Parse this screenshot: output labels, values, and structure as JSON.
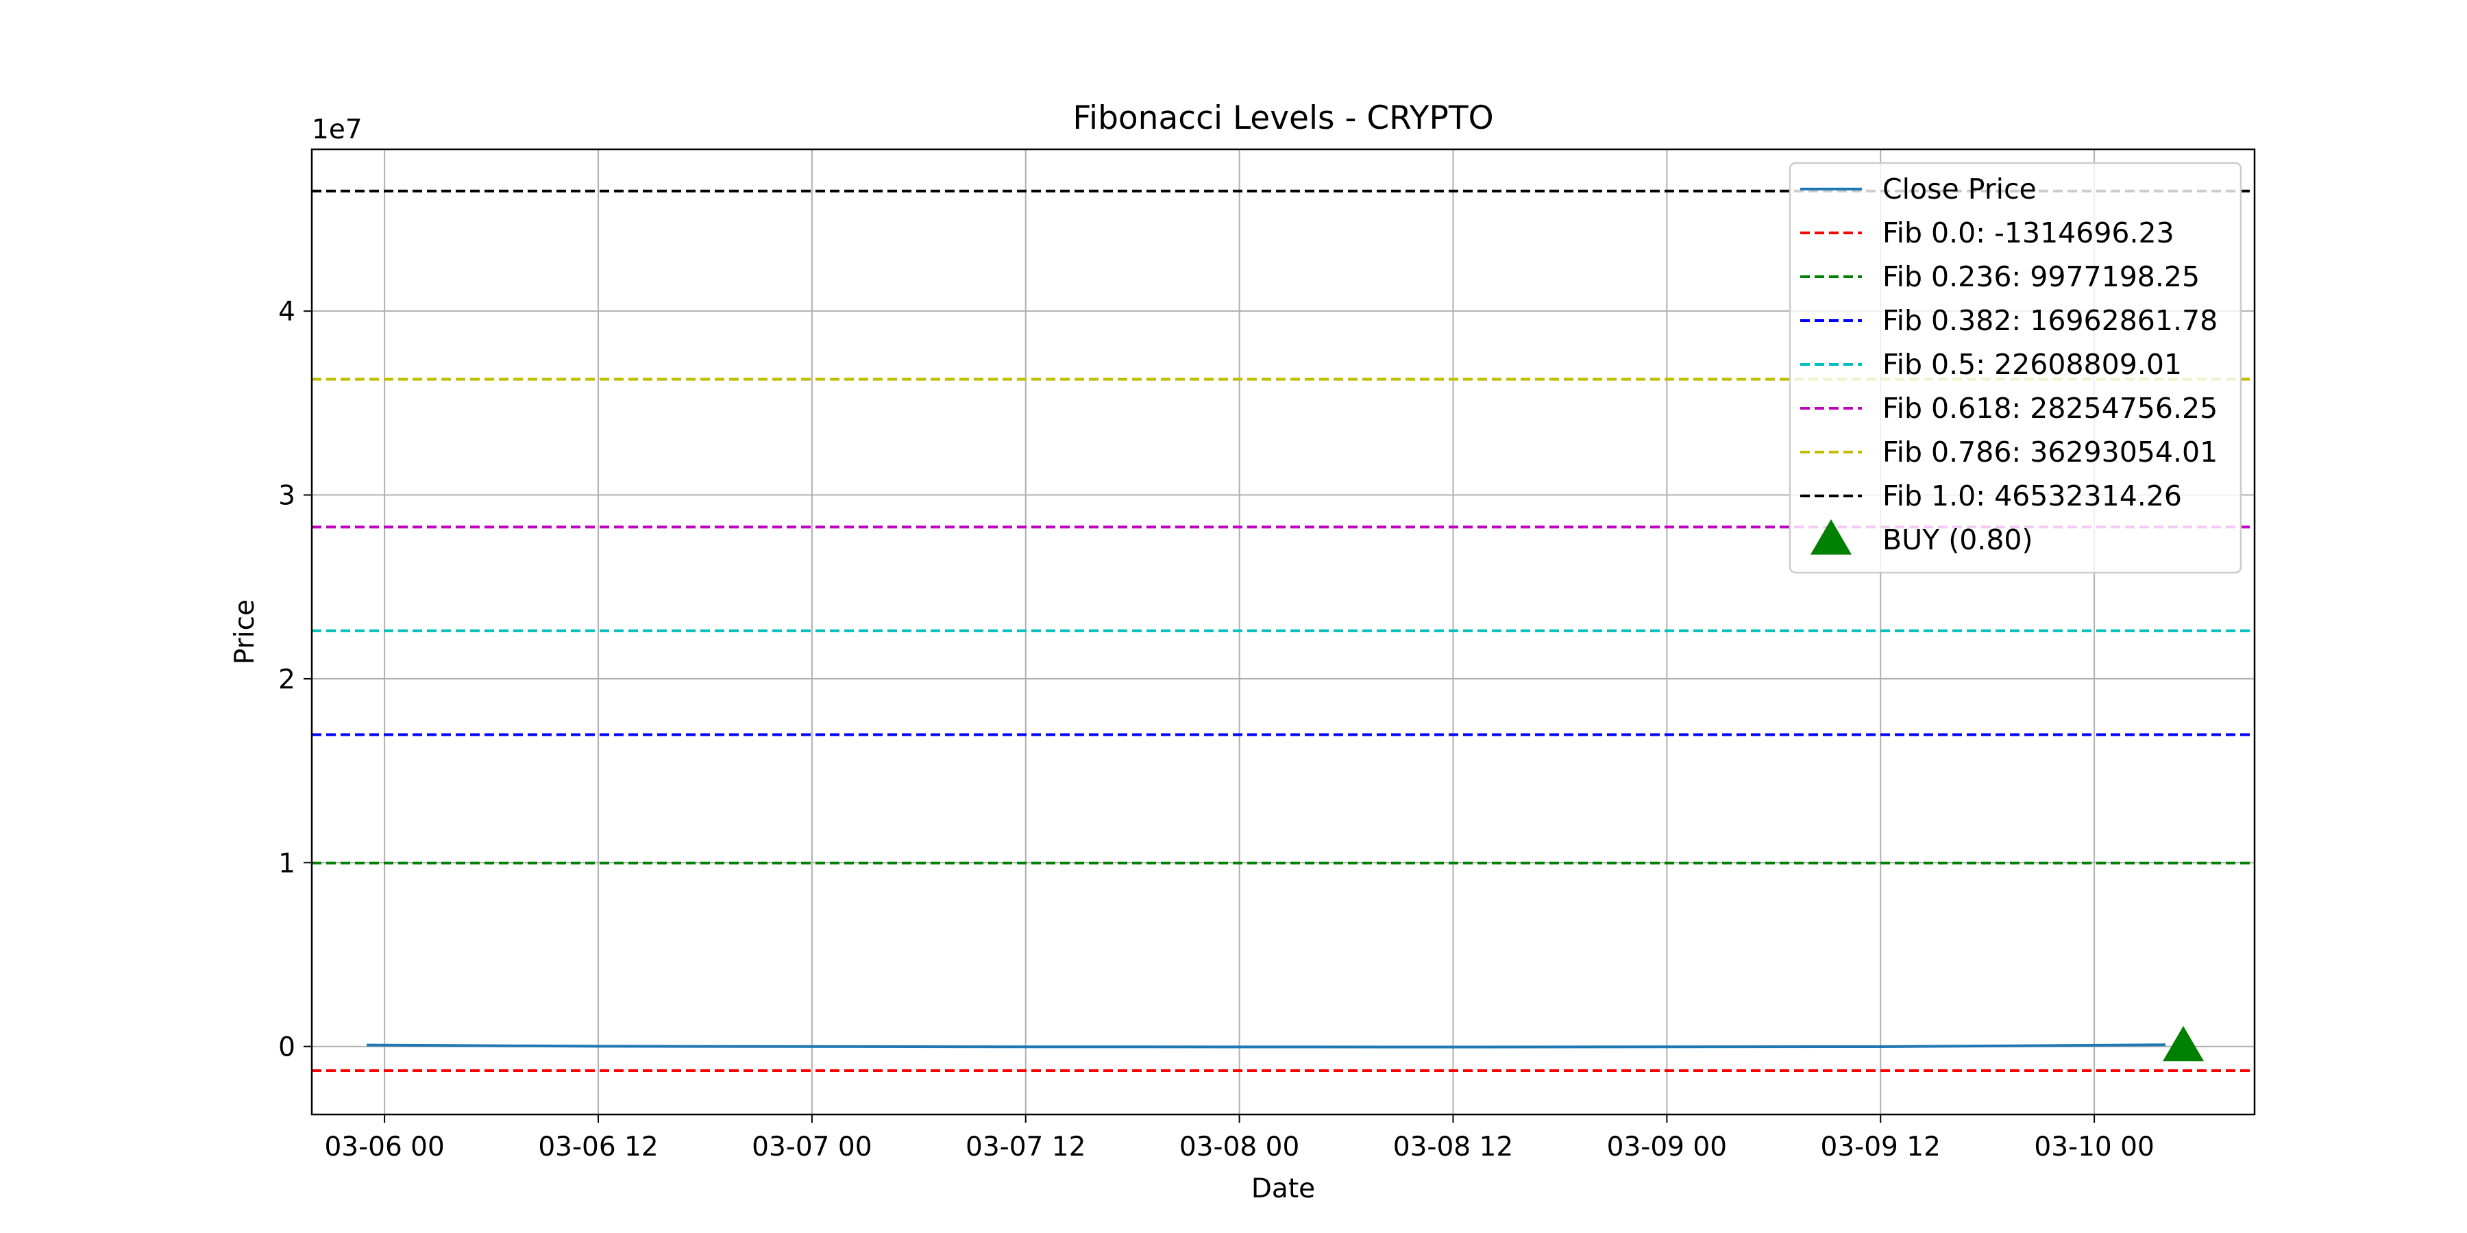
{
  "chart_data": {
    "type": "line",
    "title": "Fibonacci Levels - CRYPTO",
    "xlabel": "Date",
    "ylabel": "Price",
    "y_offset_label": "1e7",
    "grid": true,
    "legend_position": "upper right",
    "x_range": [
      "2025-03-05T19:55",
      "2025-03-10T09:00"
    ],
    "y_range": [
      -3700000,
      48800000
    ],
    "x_ticks": [
      {
        "x": "2025-03-06T00:00",
        "label": "03-06 00"
      },
      {
        "x": "2025-03-06T12:00",
        "label": "03-06 12"
      },
      {
        "x": "2025-03-07T00:00",
        "label": "03-07 00"
      },
      {
        "x": "2025-03-07T12:00",
        "label": "03-07 12"
      },
      {
        "x": "2025-03-08T00:00",
        "label": "03-08 00"
      },
      {
        "x": "2025-03-08T12:00",
        "label": "03-08 12"
      },
      {
        "x": "2025-03-09T00:00",
        "label": "03-09 00"
      },
      {
        "x": "2025-03-09T12:00",
        "label": "03-09 12"
      },
      {
        "x": "2025-03-10T00:00",
        "label": "03-10 00"
      }
    ],
    "y_ticks": [
      {
        "y": 0,
        "label": "0"
      },
      {
        "y": 10000000,
        "label": "1"
      },
      {
        "y": 20000000,
        "label": "2"
      },
      {
        "y": 30000000,
        "label": "3"
      },
      {
        "y": 40000000,
        "label": "4"
      }
    ],
    "close_price": {
      "name": "Close Price",
      "color": "#1f77b4",
      "points": [
        {
          "x": "2025-03-05T23:00",
          "y": 80000
        },
        {
          "x": "2025-03-06T12:00",
          "y": 10000
        },
        {
          "x": "2025-03-07T12:00",
          "y": -20000
        },
        {
          "x": "2025-03-08T12:00",
          "y": -30000
        },
        {
          "x": "2025-03-09T12:00",
          "y": -10000
        },
        {
          "x": "2025-03-10T04:00",
          "y": 90000
        }
      ]
    },
    "fib_levels": [
      {
        "name": "Fib 0.0: -1314696.23",
        "value": -1314696.23,
        "color": "#ff0000"
      },
      {
        "name": "Fib 0.236: 9977198.25",
        "value": 9977198.25,
        "color": "#008000"
      },
      {
        "name": "Fib 0.382: 16962861.78",
        "value": 16962861.78,
        "color": "#0000ff"
      },
      {
        "name": "Fib 0.5: 22608809.01",
        "value": 22608809.01,
        "color": "#00bfbf"
      },
      {
        "name": "Fib 0.618: 28254756.25",
        "value": 28254756.25,
        "color": "#bf00bf"
      },
      {
        "name": "Fib 0.786: 36293054.01",
        "value": 36293054.01,
        "color": "#bfbf00"
      },
      {
        "name": "Fib 1.0: 46532314.26",
        "value": 46532314.26,
        "color": "#000000"
      }
    ],
    "signals": [
      {
        "name": "BUY (0.80)",
        "x": "2025-03-10T05:00",
        "y": 0,
        "color": "#008000",
        "marker": "triangle-up"
      }
    ]
  }
}
